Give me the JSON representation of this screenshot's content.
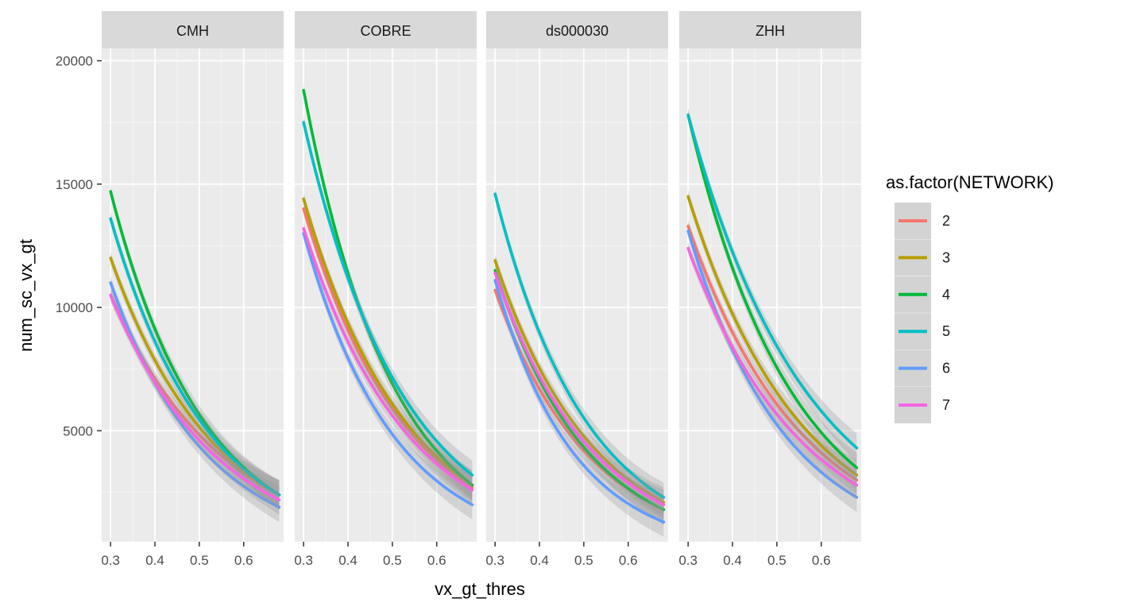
{
  "chart_data": {
    "type": "line",
    "xlabel": "vx_gt_thres",
    "ylabel": "num_sc_vx_gt",
    "xlim": [
      0.28,
      0.69
    ],
    "ylim": [
      500,
      20500
    ],
    "x_ticks": [
      0.3,
      0.4,
      0.5,
      0.6
    ],
    "x_tick_labels": [
      "0.3",
      "0.4",
      "0.5",
      "0.6"
    ],
    "y_ticks": [
      5000,
      10000,
      15000,
      20000
    ],
    "y_tick_labels": [
      "5000",
      "10000",
      "15000",
      "20000"
    ],
    "x_range": [
      0.3,
      0.68
    ],
    "grid": true,
    "legend": {
      "title": "as.factor(NETWORK)",
      "placement": "right",
      "entries": [
        {
          "label": "2",
          "color": "#F8766D"
        },
        {
          "label": "3",
          "color": "#B79F00"
        },
        {
          "label": "4",
          "color": "#00BA38"
        },
        {
          "label": "5",
          "color": "#00BFC4"
        },
        {
          "label": "6",
          "color": "#619CFF"
        },
        {
          "label": "7",
          "color": "#F564E3"
        }
      ]
    },
    "facets": [
      {
        "label": "CMH",
        "series": [
          {
            "name": "2",
            "y_start": 10500,
            "y_end": 2400
          },
          {
            "name": "3",
            "y_start": 12000,
            "y_end": 2400
          },
          {
            "name": "4",
            "y_start": 14700,
            "y_end": 2400
          },
          {
            "name": "5",
            "y_start": 13600,
            "y_end": 2400
          },
          {
            "name": "6",
            "y_start": 11000,
            "y_end": 1900
          },
          {
            "name": "7",
            "y_start": 10500,
            "y_end": 2200
          }
        ]
      },
      {
        "label": "COBRE",
        "series": [
          {
            "name": "2",
            "y_start": 14000,
            "y_end": 2700
          },
          {
            "name": "3",
            "y_start": 14400,
            "y_end": 2800
          },
          {
            "name": "4",
            "y_start": 18800,
            "y_end": 2800
          },
          {
            "name": "5",
            "y_start": 17500,
            "y_end": 3200
          },
          {
            "name": "6",
            "y_start": 13000,
            "y_end": 2000
          },
          {
            "name": "7",
            "y_start": 13200,
            "y_end": 2600
          }
        ]
      },
      {
        "label": "ds000030",
        "series": [
          {
            "name": "2",
            "y_start": 10700,
            "y_end": 1800
          },
          {
            "name": "3",
            "y_start": 11900,
            "y_end": 2100
          },
          {
            "name": "4",
            "y_start": 11500,
            "y_end": 1800
          },
          {
            "name": "5",
            "y_start": 14600,
            "y_end": 2300
          },
          {
            "name": "6",
            "y_start": 11100,
            "y_end": 1300
          },
          {
            "name": "7",
            "y_start": 11400,
            "y_end": 2000
          }
        ]
      },
      {
        "label": "ZHH",
        "series": [
          {
            "name": "2",
            "y_start": 13300,
            "y_end": 3000
          },
          {
            "name": "3",
            "y_start": 14500,
            "y_end": 3200
          },
          {
            "name": "4",
            "y_start": 17800,
            "y_end": 3500
          },
          {
            "name": "5",
            "y_start": 17800,
            "y_end": 4300
          },
          {
            "name": "6",
            "y_start": 13100,
            "y_end": 2300
          },
          {
            "name": "7",
            "y_start": 12400,
            "y_end": 2800
          }
        ]
      }
    ]
  }
}
